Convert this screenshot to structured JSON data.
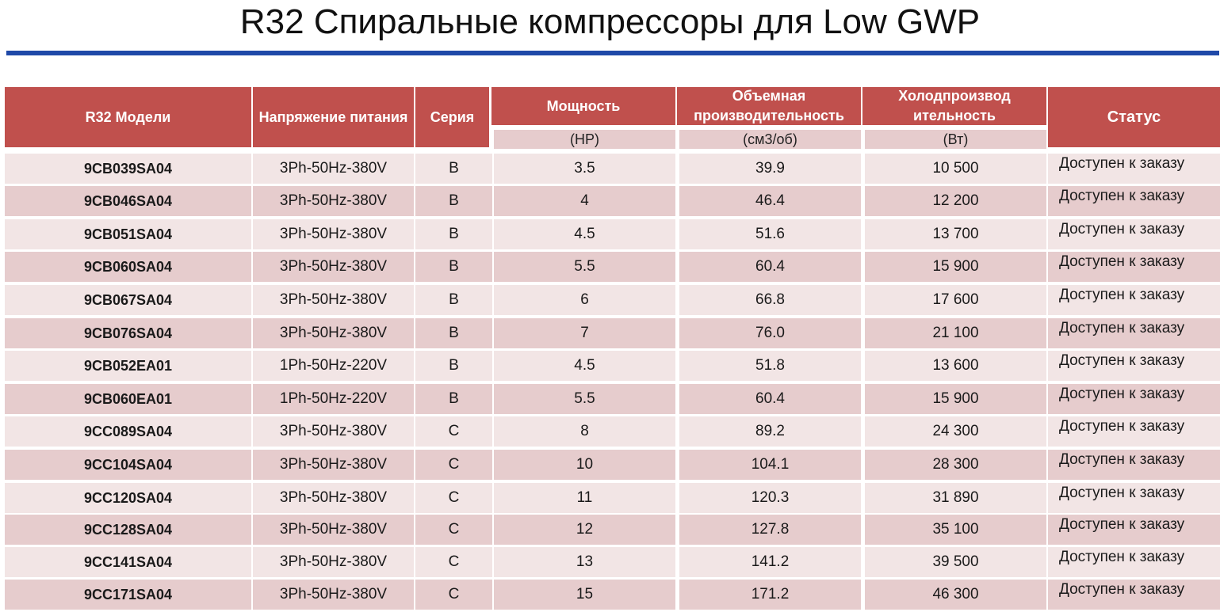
{
  "title": "R32 Спиральные компрессоры для Low GWP",
  "headers": {
    "model": "R32 Модели",
    "voltage": "Напряжение питания",
    "series": "Серия",
    "power": "Мощность",
    "displacement": "Объемная производительность",
    "capacity": "Холодпроизвод ительность",
    "status": "Статус"
  },
  "units": {
    "power": "(HP)",
    "displacement": "(см3/об)",
    "capacity": "(Вт)"
  },
  "rows": [
    {
      "model": "9CB039SA04",
      "voltage": "3Ph-50Hz-380V",
      "series": "B",
      "power": "3.5",
      "displacement": "39.9",
      "capacity": "10 500",
      "status": "Доступен к заказу"
    },
    {
      "model": "9CB046SA04",
      "voltage": "3Ph-50Hz-380V",
      "series": "B",
      "power": "4",
      "displacement": "46.4",
      "capacity": "12 200",
      "status": "Доступен к заказу"
    },
    {
      "model": "9CB051SA04",
      "voltage": "3Ph-50Hz-380V",
      "series": "B",
      "power": "4.5",
      "displacement": "51.6",
      "capacity": "13 700",
      "status": "Доступен к заказу"
    },
    {
      "model": "9CB060SA04",
      "voltage": "3Ph-50Hz-380V",
      "series": "B",
      "power": "5.5",
      "displacement": "60.4",
      "capacity": "15 900",
      "status": "Доступен к заказу"
    },
    {
      "model": "9CB067SA04",
      "voltage": "3Ph-50Hz-380V",
      "series": "B",
      "power": "6",
      "displacement": "66.8",
      "capacity": "17 600",
      "status": "Доступен к заказу"
    },
    {
      "model": "9CB076SA04",
      "voltage": "3Ph-50Hz-380V",
      "series": "B",
      "power": "7",
      "displacement": "76.0",
      "capacity": "21 100",
      "status": "Доступен к заказу"
    },
    {
      "model": "9CB052EA01",
      "voltage": "1Ph-50Hz-220V",
      "series": "B",
      "power": "4.5",
      "displacement": "51.8",
      "capacity": "13 600",
      "status": "Доступен к заказу"
    },
    {
      "model": "9CB060EA01",
      "voltage": "1Ph-50Hz-220V",
      "series": "B",
      "power": "5.5",
      "displacement": "60.4",
      "capacity": "15 900",
      "status": "Доступен к заказу"
    },
    {
      "model": "9CC089SA04",
      "voltage": "3Ph-50Hz-380V",
      "series": "C",
      "power": "8",
      "displacement": "89.2",
      "capacity": "24 300",
      "status": "Доступен к заказу"
    },
    {
      "model": "9CC104SA04",
      "voltage": "3Ph-50Hz-380V",
      "series": "C",
      "power": "10",
      "displacement": "104.1",
      "capacity": "28 300",
      "status": "Доступен к заказу"
    },
    {
      "model": "9CC120SA04",
      "voltage": "3Ph-50Hz-380V",
      "series": "C",
      "power": "11",
      "displacement": "120.3",
      "capacity": "31 890",
      "status": "Доступен к заказу"
    },
    {
      "model": "9CC128SA04",
      "voltage": "3Ph-50Hz-380V",
      "series": "C",
      "power": "12",
      "displacement": "127.8",
      "capacity": "35 100",
      "status": "Доступен к заказу"
    },
    {
      "model": "9CC141SA04",
      "voltage": "3Ph-50Hz-380V",
      "series": "C",
      "power": "13",
      "displacement": "141.2",
      "capacity": "39 500",
      "status": "Доступен к заказу"
    },
    {
      "model": "9CC171SA04",
      "voltage": "3Ph-50Hz-380V",
      "series": "C",
      "power": "15",
      "displacement": "171.2",
      "capacity": "46 300",
      "status": "Доступен к заказу"
    }
  ]
}
